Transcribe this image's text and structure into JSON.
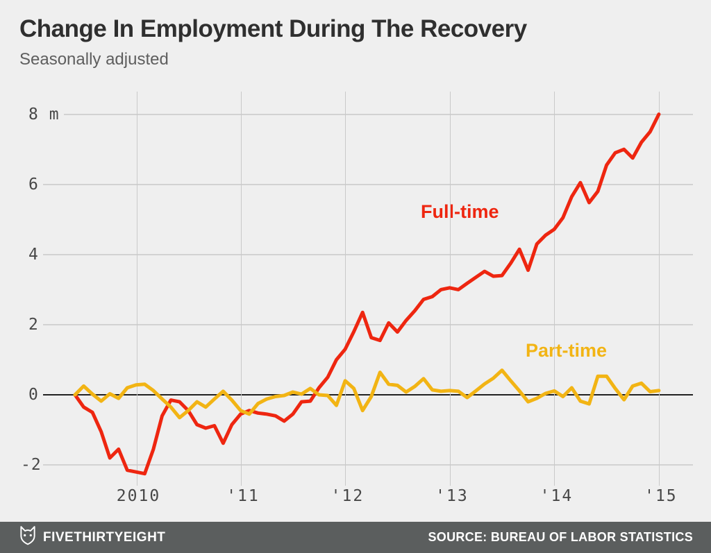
{
  "header": {
    "title": "Change In Employment During The Recovery",
    "subtitle": "Seasonally adjusted"
  },
  "chart_data": {
    "type": "line",
    "title": "Change In Employment During The Recovery",
    "subtitle": "Seasonally adjusted",
    "unit": "millions of jobs",
    "x_start": "2009-06",
    "x_end": "2015-01",
    "frequency": "monthly",
    "grid": true,
    "legend_position": "inline-labels",
    "ylim": [
      -2.6,
      8.6
    ],
    "y_ticks": [
      {
        "label": "8 m",
        "value": 8
      },
      {
        "label": "6",
        "value": 6
      },
      {
        "label": "4",
        "value": 4
      },
      {
        "label": "2",
        "value": 2
      },
      {
        "label": "0",
        "value": 0
      },
      {
        "label": "-2",
        "value": -2
      }
    ],
    "x_ticks": [
      {
        "label": "2010"
      },
      {
        "label": "'11"
      },
      {
        "label": "'12"
      },
      {
        "label": "'13"
      },
      {
        "label": "'14"
      },
      {
        "label": "'15"
      }
    ],
    "series": [
      {
        "name": "Full-time",
        "color": "#ee2610",
        "values": [
          0,
          -0.35,
          -0.5,
          -1.05,
          -1.8,
          -1.55,
          -2.15,
          -2.2,
          -2.25,
          -1.55,
          -0.6,
          -0.15,
          -0.2,
          -0.45,
          -0.85,
          -0.95,
          -0.88,
          -1.38,
          -0.85,
          -0.55,
          -0.45,
          -0.52,
          -0.55,
          -0.6,
          -0.75,
          -0.55,
          -0.2,
          -0.18,
          0.2,
          0.5,
          1.0,
          1.3,
          1.8,
          2.35,
          1.63,
          1.55,
          2.05,
          1.79,
          2.12,
          2.4,
          2.72,
          2.8,
          3.0,
          3.05,
          3.0,
          3.18,
          3.35,
          3.52,
          3.38,
          3.4,
          3.75,
          4.15,
          3.55,
          4.3,
          4.55,
          4.72,
          5.05,
          5.65,
          6.05,
          5.48,
          5.8,
          6.55,
          6.9,
          7.0,
          6.75,
          7.2,
          7.5,
          8.0
        ]
      },
      {
        "name": "Part-time",
        "color": "#f2b414",
        "values": [
          0,
          0.25,
          0.02,
          -0.18,
          0.03,
          -0.1,
          0.2,
          0.28,
          0.3,
          0.12,
          -0.12,
          -0.35,
          -0.65,
          -0.45,
          -0.2,
          -0.35,
          -0.12,
          0.1,
          -0.15,
          -0.45,
          -0.55,
          -0.25,
          -0.12,
          -0.05,
          -0.02,
          0.08,
          0.02,
          0.18,
          0.0,
          -0.02,
          -0.3,
          0.4,
          0.18,
          -0.45,
          -0.05,
          0.64,
          0.3,
          0.27,
          0.08,
          0.24,
          0.46,
          0.14,
          0.1,
          0.12,
          0.1,
          -0.08,
          0.11,
          0.31,
          0.47,
          0.7,
          0.4,
          0.11,
          -0.2,
          -0.1,
          0.04,
          0.11,
          -0.05,
          0.2,
          -0.18,
          -0.26,
          0.53,
          0.53,
          0.18,
          -0.14,
          0.25,
          0.33,
          0.09,
          0.12
        ]
      }
    ]
  },
  "footer": {
    "brand": "FIVETHIRTYEIGHT",
    "source": "SOURCE: BUREAU OF LABOR STATISTICS",
    "background": "#5b5e5e",
    "icon": "fox-logo"
  }
}
